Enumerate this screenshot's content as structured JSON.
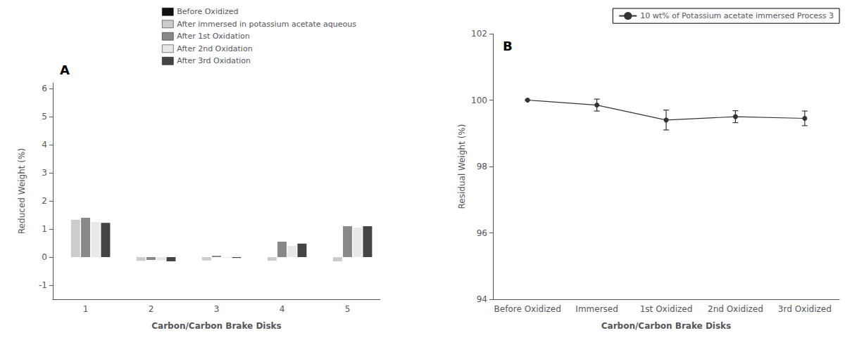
{
  "chart_data": [
    {
      "type": "bar",
      "categories": [
        "1",
        "2",
        "3",
        "4",
        "5"
      ],
      "series": [
        {
          "name": "Before Oxidized",
          "color": "#111111",
          "values": [
            0.0,
            0.0,
            0.0,
            0.0,
            0.0
          ]
        },
        {
          "name": "After immersed in potassium acetate aqueous",
          "color": "#cccccc",
          "values": [
            1.33,
            -0.13,
            -0.12,
            -0.13,
            -0.15
          ]
        },
        {
          "name": "After 1st Oxidation",
          "color": "#888888",
          "values": [
            1.4,
            -0.1,
            0.05,
            0.55,
            1.1
          ]
        },
        {
          "name": "After 2nd Oxidation",
          "color": "#e8e8e8",
          "values": [
            1.25,
            -0.12,
            -0.03,
            0.4,
            1.05
          ]
        },
        {
          "name": "After 3rd Oxidation",
          "color": "#444444",
          "values": [
            1.22,
            -0.15,
            -0.03,
            0.48,
            1.1
          ]
        }
      ],
      "xlabel": "Carbon/Carbon Brake Disks",
      "ylabel": "Reduced Weight (%)",
      "ylim": [
        -1.5,
        6.2
      ],
      "yticks": [
        -1,
        0,
        1,
        2,
        3,
        4,
        5,
        6
      ],
      "annotation": "A",
      "legend": "top",
      "grid": false
    },
    {
      "type": "line",
      "categories": [
        "Before Oxidized",
        "Immersed",
        "1st Oxidized",
        "2nd Oxidized",
        "3rd Oxidized"
      ],
      "series": [
        {
          "name": "10 wt% of Potassium acetate immersed Process 3",
          "color": "#333333",
          "marker": "circle",
          "line_style": "solid",
          "values": [
            100.0,
            99.85,
            99.4,
            99.5,
            99.45
          ],
          "errors": [
            0.0,
            0.18,
            0.3,
            0.18,
            0.22
          ]
        }
      ],
      "xlabel": "Carbon/Carbon Brake Disks",
      "ylabel": "Residual Weight (%)",
      "ylim": [
        94,
        102
      ],
      "yticks": [
        94,
        96,
        98,
        100,
        102
      ],
      "annotation": "B",
      "legend": "upper right",
      "grid": false
    }
  ]
}
